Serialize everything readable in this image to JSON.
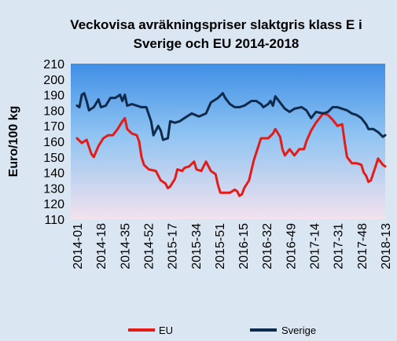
{
  "colors": {
    "page_background": "#dbe6f3",
    "plot_gradient_top": "#3f8ee6",
    "plot_gradient_bottom": "#f3e2ee",
    "eu": "#e41b17",
    "sverige": "#0f2a4a"
  },
  "chart_data": {
    "type": "line",
    "title_lines": [
      "Veckovisa avräkningspriser slaktgris klass E i",
      "Sverige och EU 2014-2018"
    ],
    "xlabel": "",
    "ylabel": "Euro/100 kg",
    "ylim": [
      110,
      210
    ],
    "yticks": [
      110,
      120,
      130,
      140,
      150,
      160,
      170,
      180,
      190,
      200,
      210
    ],
    "grid": false,
    "legend_position": "bottom",
    "x_tick_labels": [
      "2014-01",
      "2014-18",
      "2014-35",
      "2014-52",
      "2015-17",
      "2015-34",
      "2015-51",
      "2016-15",
      "2016-32",
      "2016-49",
      "2017-14",
      "2017-31",
      "2017-48",
      "2018-13"
    ],
    "x_tick_index": [
      0,
      17,
      34,
      51,
      68,
      85,
      102,
      119,
      136,
      153,
      170,
      187,
      204,
      221
    ],
    "series": [
      {
        "name": "EU",
        "color": "#e41b17",
        "keypoints": [
          [
            0,
            162
          ],
          [
            2,
            159
          ],
          [
            4,
            161
          ],
          [
            6,
            152
          ],
          [
            7,
            150
          ],
          [
            9,
            157
          ],
          [
            11,
            162
          ],
          [
            13,
            164
          ],
          [
            15,
            164
          ],
          [
            17,
            168
          ],
          [
            19,
            173
          ],
          [
            20,
            175
          ],
          [
            21,
            168
          ],
          [
            23,
            165
          ],
          [
            25,
            164
          ],
          [
            26,
            160
          ],
          [
            27,
            150
          ],
          [
            28,
            145
          ],
          [
            30,
            142
          ],
          [
            33,
            141
          ],
          [
            35,
            135
          ],
          [
            37,
            133
          ],
          [
            38,
            130
          ],
          [
            39,
            131
          ],
          [
            41,
            136
          ],
          [
            42,
            142
          ],
          [
            44,
            141
          ],
          [
            45,
            143
          ],
          [
            47,
            144
          ],
          [
            49,
            147
          ],
          [
            50,
            142
          ],
          [
            52,
            141
          ],
          [
            54,
            147
          ],
          [
            56,
            141
          ],
          [
            58,
            139
          ],
          [
            59,
            132
          ],
          [
            60,
            127
          ],
          [
            64,
            127
          ],
          [
            66,
            129
          ],
          [
            67,
            128
          ],
          [
            68,
            125
          ],
          [
            69,
            126
          ],
          [
            70,
            130
          ],
          [
            72,
            135
          ],
          [
            74,
            148
          ],
          [
            77,
            162
          ],
          [
            80,
            162
          ],
          [
            82,
            165
          ],
          [
            83,
            168
          ],
          [
            85,
            163
          ],
          [
            86,
            155
          ],
          [
            87,
            151
          ],
          [
            89,
            155
          ],
          [
            91,
            151
          ],
          [
            93,
            155
          ],
          [
            95,
            155
          ],
          [
            96,
            160
          ],
          [
            98,
            167
          ],
          [
            100,
            172
          ],
          [
            103,
            178
          ],
          [
            105,
            177
          ],
          [
            107,
            174
          ],
          [
            109,
            170
          ],
          [
            111,
            171
          ],
          [
            112,
            160
          ],
          [
            113,
            150
          ],
          [
            115,
            146
          ],
          [
            117,
            146
          ],
          [
            119,
            145
          ],
          [
            120,
            140
          ],
          [
            121,
            138
          ],
          [
            122,
            134
          ],
          [
            123,
            135
          ],
          [
            125,
            144
          ],
          [
            126,
            149
          ],
          [
            127,
            147
          ],
          [
            128,
            145
          ],
          [
            129,
            144
          ]
        ]
      },
      {
        "name": "Sverige",
        "color": "#0f2a4a",
        "keypoints": [
          [
            0,
            183
          ],
          [
            1,
            182
          ],
          [
            2,
            190
          ],
          [
            3,
            191
          ],
          [
            4,
            186
          ],
          [
            5,
            180
          ],
          [
            7,
            182
          ],
          [
            9,
            187
          ],
          [
            10,
            182
          ],
          [
            12,
            183
          ],
          [
            14,
            188
          ],
          [
            16,
            188
          ],
          [
            18,
            190
          ],
          [
            19,
            186
          ],
          [
            20,
            190
          ],
          [
            21,
            183
          ],
          [
            23,
            184
          ],
          [
            25,
            183
          ],
          [
            27,
            182
          ],
          [
            29,
            182
          ],
          [
            31,
            173
          ],
          [
            32,
            164
          ],
          [
            34,
            170
          ],
          [
            35,
            167
          ],
          [
            36,
            161
          ],
          [
            38,
            162
          ],
          [
            39,
            173
          ],
          [
            41,
            172
          ],
          [
            43,
            173
          ],
          [
            45,
            175
          ],
          [
            48,
            178
          ],
          [
            51,
            176
          ],
          [
            54,
            178
          ],
          [
            56,
            185
          ],
          [
            59,
            188
          ],
          [
            61,
            191
          ],
          [
            62,
            188
          ],
          [
            64,
            184
          ],
          [
            66,
            182
          ],
          [
            68,
            182
          ],
          [
            70,
            183
          ],
          [
            73,
            186
          ],
          [
            75,
            186
          ],
          [
            77,
            184
          ],
          [
            78,
            182
          ],
          [
            80,
            184
          ],
          [
            81,
            186
          ],
          [
            82,
            183
          ],
          [
            83,
            189
          ],
          [
            85,
            185
          ],
          [
            87,
            181
          ],
          [
            89,
            179
          ],
          [
            91,
            181
          ],
          [
            94,
            182
          ],
          [
            96,
            180
          ],
          [
            98,
            175
          ],
          [
            100,
            179
          ],
          [
            103,
            178
          ],
          [
            105,
            179
          ],
          [
            107,
            182
          ],
          [
            109,
            182
          ],
          [
            111,
            181
          ],
          [
            113,
            180
          ],
          [
            115,
            178
          ],
          [
            117,
            177
          ],
          [
            119,
            175
          ],
          [
            121,
            171
          ],
          [
            122,
            168
          ],
          [
            124,
            168
          ],
          [
            126,
            166
          ],
          [
            128,
            163
          ],
          [
            129,
            164
          ]
        ]
      }
    ]
  }
}
